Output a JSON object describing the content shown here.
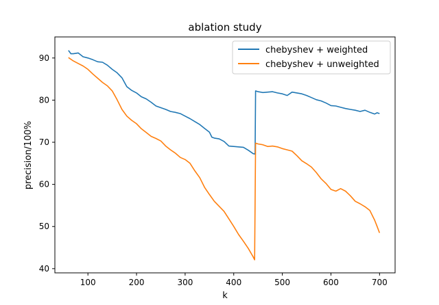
{
  "chart_data": {
    "type": "line",
    "title": "ablation study",
    "xlabel": "k",
    "ylabel": "precision/100%",
    "xlim": [
      32,
      732
    ],
    "ylim": [
      39,
      95
    ],
    "xticks": [
      100,
      200,
      300,
      400,
      500,
      600,
      700
    ],
    "yticks": [
      40,
      50,
      60,
      70,
      80,
      90
    ],
    "grid": false,
    "legend_position": "top-right",
    "series": [
      {
        "name": "chebyshev + weighted",
        "color": "#1f77b4",
        "points": [
          [
            60,
            91.8
          ],
          [
            65,
            91.0
          ],
          [
            70,
            91.0
          ],
          [
            80,
            91.2
          ],
          [
            90,
            90.3
          ],
          [
            100,
            90.0
          ],
          [
            110,
            89.6
          ],
          [
            120,
            89.1
          ],
          [
            130,
            89.0
          ],
          [
            140,
            88.3
          ],
          [
            150,
            87.3
          ],
          [
            160,
            86.5
          ],
          [
            170,
            85.3
          ],
          [
            180,
            83.2
          ],
          [
            190,
            82.3
          ],
          [
            200,
            81.7
          ],
          [
            210,
            80.8
          ],
          [
            220,
            80.3
          ],
          [
            230,
            79.5
          ],
          [
            240,
            78.6
          ],
          [
            250,
            78.2
          ],
          [
            260,
            77.8
          ],
          [
            270,
            77.3
          ],
          [
            280,
            77.1
          ],
          [
            290,
            76.8
          ],
          [
            300,
            76.2
          ],
          [
            310,
            75.6
          ],
          [
            320,
            74.9
          ],
          [
            330,
            74.2
          ],
          [
            340,
            73.3
          ],
          [
            350,
            72.4
          ],
          [
            355,
            71.2
          ],
          [
            360,
            71.0
          ],
          [
            370,
            70.8
          ],
          [
            380,
            70.2
          ],
          [
            390,
            69.1
          ],
          [
            400,
            69.0
          ],
          [
            410,
            68.9
          ],
          [
            420,
            68.8
          ],
          [
            430,
            68.1
          ],
          [
            440,
            67.3
          ],
          [
            444,
            67.2
          ],
          [
            445,
            82.2
          ],
          [
            450,
            82.0
          ],
          [
            460,
            81.8
          ],
          [
            470,
            81.9
          ],
          [
            480,
            82.0
          ],
          [
            490,
            81.7
          ],
          [
            500,
            81.5
          ],
          [
            510,
            81.1
          ],
          [
            520,
            81.9
          ],
          [
            530,
            81.7
          ],
          [
            540,
            81.5
          ],
          [
            550,
            81.1
          ],
          [
            560,
            80.6
          ],
          [
            570,
            80.1
          ],
          [
            580,
            79.8
          ],
          [
            590,
            79.3
          ],
          [
            600,
            78.7
          ],
          [
            610,
            78.6
          ],
          [
            620,
            78.3
          ],
          [
            630,
            78.0
          ],
          [
            640,
            77.8
          ],
          [
            650,
            77.6
          ],
          [
            660,
            77.3
          ],
          [
            670,
            77.6
          ],
          [
            680,
            77.1
          ],
          [
            690,
            76.7
          ],
          [
            695,
            77.0
          ],
          [
            700,
            76.8
          ]
        ]
      },
      {
        "name": "chebyshev + unweighted",
        "color": "#ff7f0e",
        "points": [
          [
            60,
            90.1
          ],
          [
            70,
            89.3
          ],
          [
            80,
            88.7
          ],
          [
            90,
            88.1
          ],
          [
            100,
            87.3
          ],
          [
            110,
            86.2
          ],
          [
            120,
            85.2
          ],
          [
            130,
            84.2
          ],
          [
            140,
            83.4
          ],
          [
            150,
            82.2
          ],
          [
            160,
            80.1
          ],
          [
            170,
            77.8
          ],
          [
            180,
            76.2
          ],
          [
            190,
            75.2
          ],
          [
            200,
            74.4
          ],
          [
            210,
            73.2
          ],
          [
            220,
            72.3
          ],
          [
            230,
            71.4
          ],
          [
            240,
            70.9
          ],
          [
            250,
            70.3
          ],
          [
            260,
            69.1
          ],
          [
            270,
            68.2
          ],
          [
            280,
            67.4
          ],
          [
            290,
            66.4
          ],
          [
            300,
            65.9
          ],
          [
            310,
            65.0
          ],
          [
            320,
            63.2
          ],
          [
            330,
            61.6
          ],
          [
            340,
            59.3
          ],
          [
            350,
            57.6
          ],
          [
            360,
            56.0
          ],
          [
            370,
            54.8
          ],
          [
            380,
            53.6
          ],
          [
            390,
            51.8
          ],
          [
            400,
            50.0
          ],
          [
            410,
            48.1
          ],
          [
            420,
            46.5
          ],
          [
            430,
            44.8
          ],
          [
            440,
            42.8
          ],
          [
            443,
            42.1
          ],
          [
            445,
            69.8
          ],
          [
            450,
            69.6
          ],
          [
            460,
            69.4
          ],
          [
            470,
            69.0
          ],
          [
            480,
            69.1
          ],
          [
            490,
            68.9
          ],
          [
            500,
            68.5
          ],
          [
            510,
            68.2
          ],
          [
            520,
            67.9
          ],
          [
            530,
            66.8
          ],
          [
            540,
            65.6
          ],
          [
            550,
            64.9
          ],
          [
            560,
            64.1
          ],
          [
            570,
            62.8
          ],
          [
            580,
            61.3
          ],
          [
            590,
            60.2
          ],
          [
            600,
            58.8
          ],
          [
            610,
            58.4
          ],
          [
            620,
            59.0
          ],
          [
            630,
            58.4
          ],
          [
            640,
            57.3
          ],
          [
            650,
            56.0
          ],
          [
            660,
            55.4
          ],
          [
            670,
            54.7
          ],
          [
            680,
            53.8
          ],
          [
            690,
            51.5
          ],
          [
            695,
            50.0
          ],
          [
            700,
            48.5
          ]
        ]
      }
    ]
  }
}
